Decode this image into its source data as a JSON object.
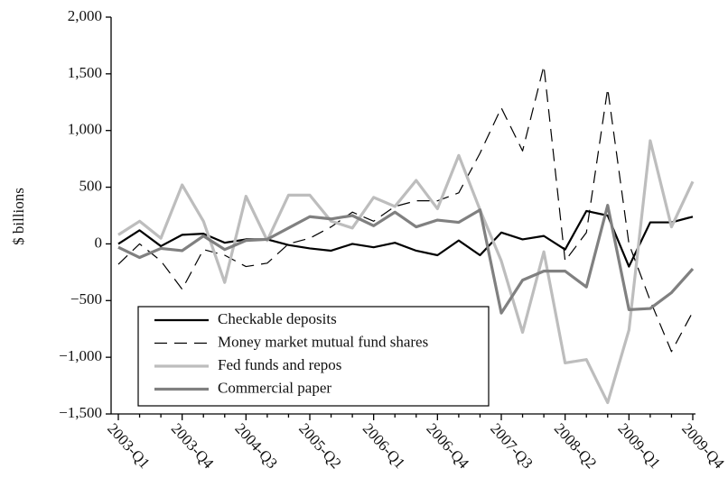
{
  "chart_data": {
    "type": "line",
    "y_label": "$ billions",
    "categories": [
      "2003-Q1",
      null,
      null,
      "2003-Q4",
      null,
      null,
      "2004-Q3",
      null,
      null,
      "2005-Q2",
      null,
      null,
      "2006-Q1",
      null,
      null,
      "2006-Q4",
      null,
      null,
      "2007-Q3",
      null,
      null,
      "2008-Q2",
      null,
      null,
      "2009-Q1",
      null,
      null,
      "2009-Q4"
    ],
    "series": [
      {
        "name": "Checkable deposits",
        "color": "#000000",
        "line_style": "solid",
        "values": [
          0,
          120,
          -20,
          80,
          90,
          10,
          40,
          40,
          -10,
          -40,
          -60,
          0,
          -30,
          10,
          -60,
          -100,
          30,
          -100,
          100,
          40,
          70,
          -50,
          290,
          250,
          -200,
          190,
          190,
          240
        ]
      },
      {
        "name": "Money market mutual fund shares",
        "color": "#000000",
        "line_style": "dashed",
        "values": [
          -180,
          0,
          -150,
          -400,
          -50,
          -100,
          -200,
          -170,
          0,
          50,
          150,
          280,
          200,
          330,
          380,
          380,
          450,
          800,
          1200,
          820,
          1570,
          -150,
          100,
          1370,
          0,
          -500,
          -950,
          -600
        ]
      },
      {
        "name": "Fed funds and repos",
        "color": "#bdbdbd",
        "line_style": "solid",
        "values": [
          80,
          200,
          50,
          520,
          200,
          -340,
          420,
          30,
          430,
          430,
          200,
          140,
          410,
          330,
          560,
          310,
          780,
          300,
          -150,
          -780,
          -70,
          -1050,
          -1020,
          -1400,
          -760,
          910,
          150,
          550
        ]
      },
      {
        "name": "Commercial paper",
        "color": "#808080",
        "line_style": "solid",
        "values": [
          -30,
          -120,
          -40,
          -60,
          70,
          -50,
          30,
          40,
          140,
          240,
          220,
          250,
          160,
          280,
          150,
          210,
          190,
          300,
          -610,
          -320,
          -240,
          -240,
          -380,
          340,
          -580,
          -570,
          -430,
          -220
        ]
      }
    ],
    "ylim": [
      -1500,
      2000
    ],
    "yticks": [
      {
        "value": -1500,
        "label": "−1,500"
      },
      {
        "value": -1000,
        "label": "−1,000"
      },
      {
        "value": -500,
        "label": "−500"
      },
      0,
      500,
      {
        "value": 1000,
        "label": "1,000"
      },
      {
        "value": 1500,
        "label": "1,500"
      },
      {
        "value": 2000,
        "label": "2,000"
      }
    ],
    "grid": false,
    "legend": "lower left"
  }
}
